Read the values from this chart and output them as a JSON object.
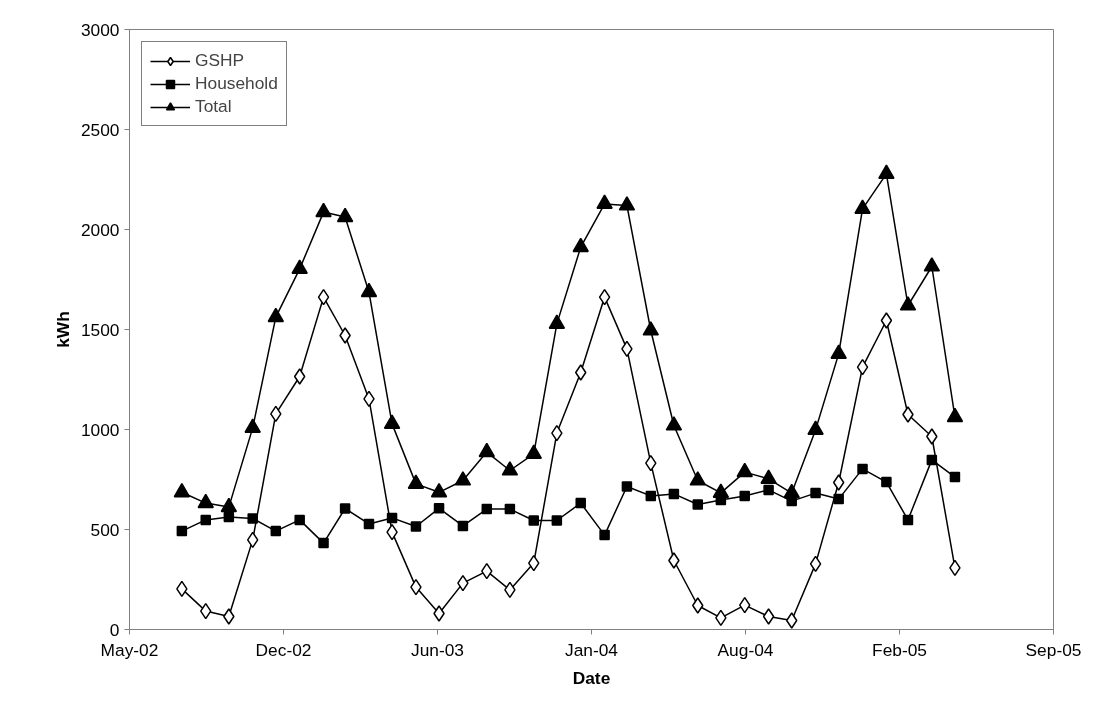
{
  "chart_data": {
    "type": "line",
    "xlabel": "Date",
    "ylabel": "kWh",
    "x": [
      "2002-08-01",
      "2002-09-01",
      "2002-10-01",
      "2002-11-01",
      "2002-12-01",
      "2003-01-01",
      "2003-02-01",
      "2003-03-01",
      "2003-04-01",
      "2003-05-01",
      "2003-06-01",
      "2003-07-01",
      "2003-08-01",
      "2003-09-01",
      "2003-10-01",
      "2003-11-01",
      "2003-12-01",
      "2004-01-01",
      "2004-02-01",
      "2004-03-01",
      "2004-04-01",
      "2004-05-01",
      "2004-06-01",
      "2004-07-01",
      "2004-08-01",
      "2004-09-01",
      "2004-10-01",
      "2004-11-01",
      "2004-12-01",
      "2005-01-01",
      "2005-02-01",
      "2005-03-01",
      "2005-04-01",
      "2005-05-01"
    ],
    "series": [
      {
        "name": "GSHP",
        "color": "#000000",
        "marker": "diamond",
        "values": [
          203,
          92,
          65,
          448,
          1078,
          1265,
          1662,
          1470,
          1153,
          487,
          212,
          80,
          232,
          292,
          198,
          332,
          982,
          1285,
          1662,
          1403,
          832,
          345,
          120,
          58,
          122,
          65,
          45,
          328,
          735,
          1312,
          1545,
          1075,
          965,
          308
        ]
      },
      {
        "name": "Household",
        "color": "#000000",
        "marker": "square",
        "values": [
          492,
          548,
          562,
          555,
          492,
          548,
          432,
          605,
          528,
          558,
          515,
          606,
          518,
          602,
          602,
          545,
          545,
          632,
          472,
          715,
          668,
          678,
          625,
          647,
          668,
          698,
          642,
          682,
          652,
          803,
          737,
          548,
          848,
          762
        ]
      },
      {
        "name": "Total",
        "color": "#000000",
        "marker": "triangle",
        "values": [
          686,
          632,
          612,
          1008,
          1562,
          1803,
          2087,
          2062,
          1687,
          1028,
          728,
          686,
          745,
          887,
          795,
          878,
          1528,
          1912,
          2128,
          2120,
          1495,
          1020,
          745,
          683,
          787,
          753,
          682,
          998,
          1378,
          2103,
          2278,
          1620,
          1815,
          1062
        ]
      }
    ],
    "xlim": [
      "2002-05-25",
      "2005-09-06"
    ],
    "xticks": [
      {
        "value": "2002-05-25",
        "label": "May-02"
      },
      {
        "value": "2002-12-11",
        "label": "Dec-02"
      },
      {
        "value": "2003-06-29",
        "label": "Jun-03"
      },
      {
        "value": "2004-01-15",
        "label": "Jan-04"
      },
      {
        "value": "2004-08-02",
        "label": "Aug-04"
      },
      {
        "value": "2005-02-18",
        "label": "Feb-05"
      },
      {
        "value": "2005-09-06",
        "label": "Sep-05"
      }
    ],
    "ylim": [
      0,
      3000
    ],
    "yticks": [
      0,
      500,
      1000,
      1500,
      2000,
      2500,
      3000
    ],
    "grid": false,
    "legend": "top left",
    "line_style": "solid"
  }
}
